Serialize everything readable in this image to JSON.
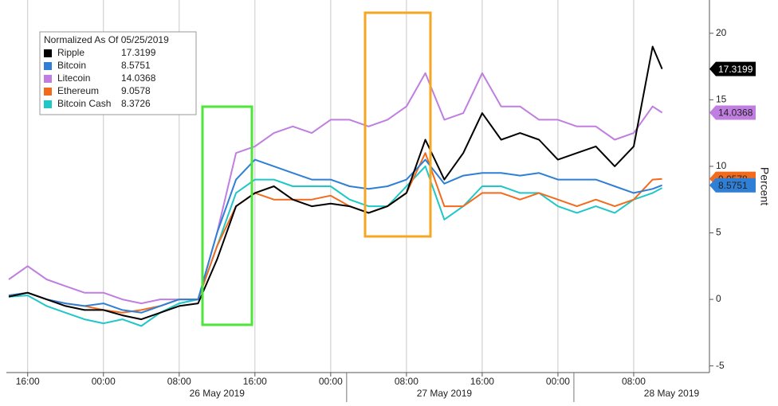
{
  "chart_data": {
    "type": "line",
    "legend_title": "Normalized As Of 05/25/2019",
    "y_label": "Percent",
    "x": [
      "2019-05-25 14:00",
      "2019-05-25 16:00",
      "2019-05-25 18:00",
      "2019-05-25 20:00",
      "2019-05-25 22:00",
      "2019-05-26 00:00",
      "2019-05-26 02:00",
      "2019-05-26 04:00",
      "2019-05-26 06:00",
      "2019-05-26 08:00",
      "2019-05-26 10:00",
      "2019-05-26 12:00",
      "2019-05-26 14:00",
      "2019-05-26 16:00",
      "2019-05-26 18:00",
      "2019-05-26 20:00",
      "2019-05-26 22:00",
      "2019-05-27 00:00",
      "2019-05-27 02:00",
      "2019-05-27 04:00",
      "2019-05-27 06:00",
      "2019-05-27 08:00",
      "2019-05-27 10:00",
      "2019-05-27 12:00",
      "2019-05-27 14:00",
      "2019-05-27 16:00",
      "2019-05-27 18:00",
      "2019-05-27 20:00",
      "2019-05-27 22:00",
      "2019-05-28 00:00",
      "2019-05-28 02:00",
      "2019-05-28 04:00",
      "2019-05-28 06:00",
      "2019-05-28 08:00",
      "2019-05-28 10:00",
      "2019-05-28 11:00"
    ],
    "series": [
      {
        "name": "Ripple",
        "color": "#000000",
        "values": [
          0.2,
          0.5,
          0,
          -0.5,
          -0.8,
          -0.8,
          -1.2,
          -1.5,
          -1,
          -0.5,
          -0.3,
          3,
          7,
          8,
          8.5,
          7.5,
          7,
          7.2,
          7,
          6.5,
          7,
          8,
          12,
          9,
          11,
          14,
          12,
          12.5,
          12,
          10.5,
          11,
          11.5,
          10,
          11.5,
          19,
          17.3199
        ]
      },
      {
        "name": "Bitcoin",
        "color": "#2f7fd6",
        "values": [
          0.3,
          0.5,
          0,
          -0.3,
          -0.5,
          -0.3,
          -0.8,
          -1,
          -0.5,
          0,
          0,
          5,
          9,
          10.5,
          10,
          9.5,
          9,
          9,
          8.5,
          8.3,
          8.5,
          9,
          10.5,
          8.7,
          9.3,
          9.5,
          9.5,
          9.3,
          9.5,
          9,
          9,
          9,
          8.5,
          8,
          8.3,
          8.5751
        ]
      },
      {
        "name": "Litecoin",
        "color": "#c07ee0",
        "values": [
          1.5,
          2.5,
          1.5,
          1,
          0.5,
          0.5,
          0,
          -0.3,
          0,
          0,
          0,
          5,
          11,
          11.5,
          12.5,
          13,
          12.5,
          13.5,
          13.5,
          13,
          13.5,
          14.5,
          17,
          13.5,
          14,
          17,
          14.5,
          14.5,
          13.5,
          13.5,
          13,
          13,
          12,
          12.5,
          14.5,
          14.0368
        ]
      },
      {
        "name": "Ethereum",
        "color": "#f26b1d",
        "values": [
          0.3,
          0.5,
          0,
          -0.3,
          -0.5,
          -0.8,
          -1,
          -0.8,
          -0.5,
          0,
          0,
          4,
          7,
          8,
          7.5,
          7.5,
          7.5,
          7.8,
          7,
          6.5,
          7,
          8,
          11,
          7,
          7,
          8,
          8,
          7.5,
          8,
          7.5,
          7,
          7.5,
          7,
          7.5,
          9,
          9.0578
        ]
      },
      {
        "name": "Bitcoin Cash",
        "color": "#1fc7c7",
        "values": [
          0.2,
          0.3,
          -0.5,
          -1,
          -1.5,
          -1.8,
          -1.5,
          -2,
          -1,
          -0.3,
          0,
          4,
          8,
          9,
          9,
          8.5,
          8.5,
          8.5,
          7.5,
          7,
          7,
          8.5,
          10,
          6,
          7,
          8.5,
          8.5,
          8,
          8,
          7,
          6.5,
          7,
          6.5,
          7.5,
          8,
          8.3726
        ]
      }
    ],
    "xlim": [
      "2019-05-25 13:45",
      "2019-05-28 16:00"
    ],
    "xticks": [
      {
        "value": "2019-05-25 16:00",
        "label": "16:00"
      },
      {
        "value": "2019-05-26 00:00",
        "label": "00:00"
      },
      {
        "value": "2019-05-26 08:00",
        "label": "08:00"
      },
      {
        "value": "2019-05-26 16:00",
        "label": "16:00"
      },
      {
        "value": "2019-05-27 00:00",
        "label": "00:00"
      },
      {
        "value": "2019-05-27 08:00",
        "label": "08:00"
      },
      {
        "value": "2019-05-27 16:00",
        "label": "16:00"
      },
      {
        "value": "2019-05-28 00:00",
        "label": "00:00"
      },
      {
        "value": "2019-05-28 08:00",
        "label": "08:00"
      }
    ],
    "xdateticks": [
      {
        "value": "2019-05-26 12:00",
        "label": "26 May 2019"
      },
      {
        "value": "2019-05-27 12:00",
        "label": "27 May 2019"
      },
      {
        "value": "2019-05-28 12:00",
        "label": "28 May 2019"
      }
    ],
    "ylim": [
      -5.5,
      22.5
    ],
    "yticks": [
      -5,
      0,
      5,
      10,
      15,
      20
    ],
    "last_value_tags": [
      "Ripple",
      "Litecoin",
      "Ethereum",
      "Bitcoin"
    ]
  }
}
